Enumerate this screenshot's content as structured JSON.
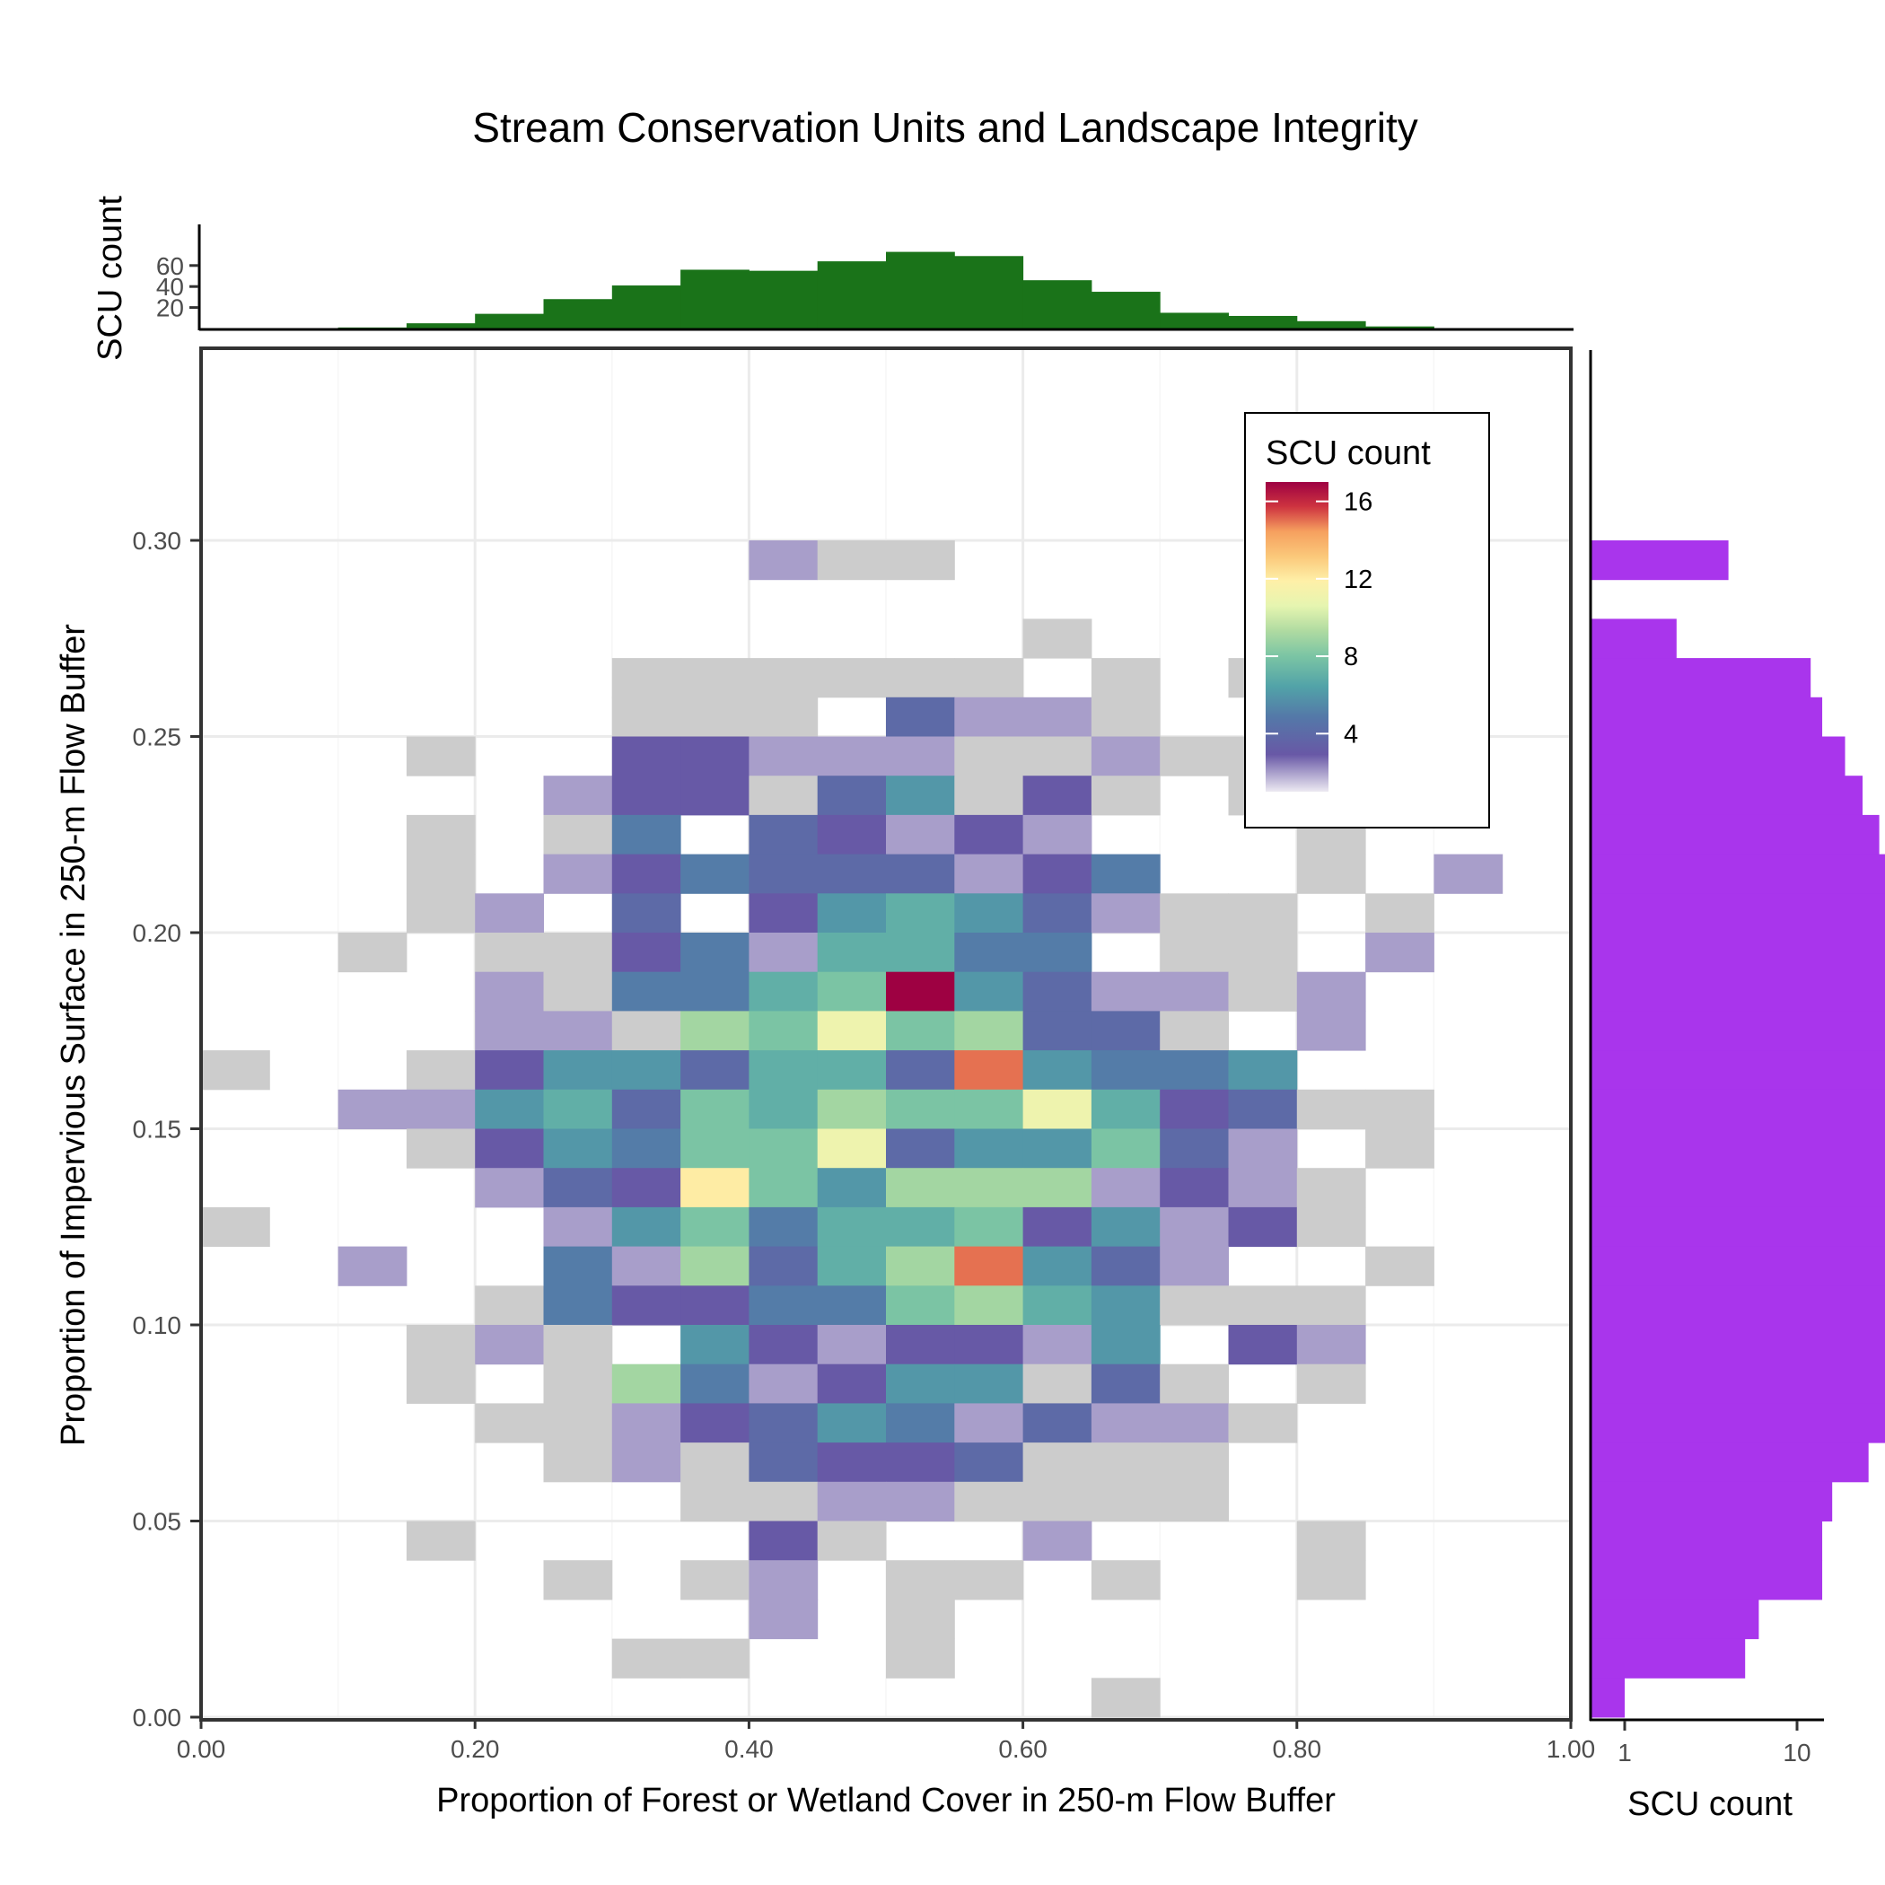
{
  "chart_data": {
    "type": "heatmap",
    "title": "Stream Conservation Units and Landscape Integrity",
    "xlabel": "Proportion of Forest or Wetland Cover in 250-m Flow Buffer",
    "ylabel": "Proportion of Impervious Surface in 250-m Flow Buffer",
    "xlim": [
      0,
      1
    ],
    "ylim": [
      0,
      0.35
    ],
    "x_ticks": [
      "0.00",
      "0.20",
      "0.40",
      "0.60",
      "0.80",
      "1.00"
    ],
    "y_ticks": [
      "0.00",
      "0.05",
      "0.10",
      "0.15",
      "0.20",
      "0.25",
      "0.30"
    ],
    "bin_width_x": 0.05,
    "bin_height_y": 0.01,
    "grid": true,
    "colorscale": "Spectral (reversed)",
    "legend": {
      "title": "SCU count",
      "ticks": [
        "16",
        "12",
        "8",
        "4"
      ],
      "range": [
        1,
        17
      ],
      "position": "top-right"
    },
    "cells": [
      [
        0.4,
        0.29,
        2
      ],
      [
        0.45,
        0.29,
        1
      ],
      [
        0.5,
        0.29,
        1
      ],
      [
        0.6,
        0.27,
        1
      ],
      [
        0.3,
        0.26,
        1
      ],
      [
        0.35,
        0.26,
        1
      ],
      [
        0.4,
        0.26,
        1
      ],
      [
        0.45,
        0.26,
        1
      ],
      [
        0.5,
        0.26,
        1
      ],
      [
        0.55,
        0.26,
        1
      ],
      [
        0.65,
        0.26,
        1
      ],
      [
        0.75,
        0.26,
        1
      ],
      [
        0.3,
        0.25,
        1
      ],
      [
        0.35,
        0.25,
        1
      ],
      [
        0.4,
        0.25,
        1
      ],
      [
        0.5,
        0.25,
        4
      ],
      [
        0.55,
        0.25,
        2
      ],
      [
        0.6,
        0.25,
        2
      ],
      [
        0.65,
        0.25,
        1
      ],
      [
        0.15,
        0.24,
        1
      ],
      [
        0.3,
        0.24,
        3
      ],
      [
        0.35,
        0.24,
        3
      ],
      [
        0.4,
        0.24,
        2
      ],
      [
        0.45,
        0.24,
        2
      ],
      [
        0.5,
        0.24,
        2
      ],
      [
        0.55,
        0.24,
        1
      ],
      [
        0.6,
        0.24,
        1
      ],
      [
        0.65,
        0.24,
        2
      ],
      [
        0.7,
        0.24,
        1
      ],
      [
        0.75,
        0.24,
        1
      ],
      [
        0.25,
        0.23,
        2
      ],
      [
        0.3,
        0.23,
        3
      ],
      [
        0.35,
        0.23,
        3
      ],
      [
        0.4,
        0.23,
        1
      ],
      [
        0.45,
        0.23,
        4
      ],
      [
        0.5,
        0.23,
        6
      ],
      [
        0.55,
        0.23,
        1
      ],
      [
        0.6,
        0.23,
        3
      ],
      [
        0.65,
        0.23,
        1
      ],
      [
        0.75,
        0.23,
        1
      ],
      [
        0.8,
        0.23,
        1
      ],
      [
        0.15,
        0.22,
        1
      ],
      [
        0.25,
        0.22,
        1
      ],
      [
        0.3,
        0.22,
        5
      ],
      [
        0.4,
        0.22,
        4
      ],
      [
        0.45,
        0.22,
        3
      ],
      [
        0.5,
        0.22,
        2
      ],
      [
        0.55,
        0.22,
        3
      ],
      [
        0.6,
        0.22,
        2
      ],
      [
        0.8,
        0.22,
        1
      ],
      [
        0.15,
        0.21,
        1
      ],
      [
        0.25,
        0.21,
        2
      ],
      [
        0.3,
        0.21,
        3
      ],
      [
        0.35,
        0.21,
        5
      ],
      [
        0.4,
        0.21,
        4
      ],
      [
        0.45,
        0.21,
        4
      ],
      [
        0.5,
        0.21,
        4
      ],
      [
        0.55,
        0.21,
        2
      ],
      [
        0.6,
        0.21,
        3
      ],
      [
        0.65,
        0.21,
        5
      ],
      [
        0.8,
        0.21,
        1
      ],
      [
        0.9,
        0.21,
        2
      ],
      [
        0.15,
        0.2,
        1
      ],
      [
        0.2,
        0.2,
        2
      ],
      [
        0.3,
        0.2,
        4
      ],
      [
        0.4,
        0.2,
        3
      ],
      [
        0.45,
        0.2,
        6
      ],
      [
        0.5,
        0.2,
        7
      ],
      [
        0.55,
        0.2,
        6
      ],
      [
        0.6,
        0.2,
        4
      ],
      [
        0.65,
        0.2,
        2
      ],
      [
        0.7,
        0.2,
        1
      ],
      [
        0.75,
        0.2,
        1
      ],
      [
        0.85,
        0.2,
        1
      ],
      [
        0.1,
        0.19,
        1
      ],
      [
        0.2,
        0.19,
        1
      ],
      [
        0.25,
        0.19,
        1
      ],
      [
        0.3,
        0.19,
        3
      ],
      [
        0.35,
        0.19,
        5
      ],
      [
        0.4,
        0.19,
        2
      ],
      [
        0.45,
        0.19,
        7
      ],
      [
        0.5,
        0.19,
        7
      ],
      [
        0.55,
        0.19,
        5
      ],
      [
        0.6,
        0.19,
        5
      ],
      [
        0.7,
        0.19,
        1
      ],
      [
        0.75,
        0.19,
        1
      ],
      [
        0.85,
        0.19,
        2
      ],
      [
        0.2,
        0.18,
        2
      ],
      [
        0.25,
        0.18,
        1
      ],
      [
        0.3,
        0.18,
        5
      ],
      [
        0.35,
        0.18,
        5
      ],
      [
        0.4,
        0.18,
        7
      ],
      [
        0.45,
        0.18,
        8
      ],
      [
        0.5,
        0.18,
        17
      ],
      [
        0.55,
        0.18,
        6
      ],
      [
        0.6,
        0.18,
        4
      ],
      [
        0.65,
        0.18,
        2
      ],
      [
        0.7,
        0.18,
        2
      ],
      [
        0.75,
        0.18,
        1
      ],
      [
        0.8,
        0.18,
        2
      ],
      [
        0.2,
        0.17,
        2
      ],
      [
        0.25,
        0.17,
        2
      ],
      [
        0.3,
        0.17,
        1
      ],
      [
        0.35,
        0.17,
        9
      ],
      [
        0.4,
        0.17,
        8
      ],
      [
        0.45,
        0.17,
        11
      ],
      [
        0.5,
        0.17,
        8
      ],
      [
        0.55,
        0.17,
        9
      ],
      [
        0.6,
        0.17,
        4
      ],
      [
        0.65,
        0.17,
        4
      ],
      [
        0.7,
        0.17,
        1
      ],
      [
        0.8,
        0.17,
        2
      ],
      [
        0.0,
        0.16,
        1
      ],
      [
        0.15,
        0.16,
        1
      ],
      [
        0.2,
        0.16,
        3
      ],
      [
        0.25,
        0.16,
        6
      ],
      [
        0.3,
        0.16,
        6
      ],
      [
        0.35,
        0.16,
        4
      ],
      [
        0.4,
        0.16,
        7
      ],
      [
        0.45,
        0.16,
        7
      ],
      [
        0.5,
        0.16,
        4
      ],
      [
        0.55,
        0.16,
        15
      ],
      [
        0.6,
        0.16,
        6
      ],
      [
        0.65,
        0.16,
        5
      ],
      [
        0.7,
        0.16,
        5
      ],
      [
        0.75,
        0.16,
        6
      ],
      [
        0.1,
        0.15,
        2
      ],
      [
        0.15,
        0.15,
        2
      ],
      [
        0.2,
        0.15,
        6
      ],
      [
        0.25,
        0.15,
        7
      ],
      [
        0.3,
        0.15,
        4
      ],
      [
        0.35,
        0.15,
        8
      ],
      [
        0.4,
        0.15,
        7
      ],
      [
        0.45,
        0.15,
        9
      ],
      [
        0.5,
        0.15,
        8
      ],
      [
        0.55,
        0.15,
        8
      ],
      [
        0.6,
        0.15,
        11
      ],
      [
        0.65,
        0.15,
        7
      ],
      [
        0.7,
        0.15,
        3
      ],
      [
        0.75,
        0.15,
        4
      ],
      [
        0.8,
        0.15,
        1
      ],
      [
        0.85,
        0.15,
        1
      ],
      [
        0.15,
        0.14,
        1
      ],
      [
        0.2,
        0.14,
        3
      ],
      [
        0.25,
        0.14,
        6
      ],
      [
        0.3,
        0.14,
        5
      ],
      [
        0.35,
        0.14,
        8
      ],
      [
        0.4,
        0.14,
        8
      ],
      [
        0.45,
        0.14,
        11
      ],
      [
        0.5,
        0.14,
        4
      ],
      [
        0.55,
        0.14,
        6
      ],
      [
        0.6,
        0.14,
        6
      ],
      [
        0.65,
        0.14,
        8
      ],
      [
        0.7,
        0.14,
        4
      ],
      [
        0.75,
        0.14,
        2
      ],
      [
        0.85,
        0.14,
        1
      ],
      [
        0.2,
        0.13,
        2
      ],
      [
        0.25,
        0.13,
        4
      ],
      [
        0.3,
        0.13,
        3
      ],
      [
        0.35,
        0.13,
        12
      ],
      [
        0.4,
        0.13,
        8
      ],
      [
        0.45,
        0.13,
        6
      ],
      [
        0.5,
        0.13,
        9
      ],
      [
        0.55,
        0.13,
        9
      ],
      [
        0.6,
        0.13,
        9
      ],
      [
        0.65,
        0.13,
        2
      ],
      [
        0.7,
        0.13,
        3
      ],
      [
        0.75,
        0.13,
        2
      ],
      [
        0.8,
        0.13,
        1
      ],
      [
        0.0,
        0.12,
        1
      ],
      [
        0.25,
        0.12,
        2
      ],
      [
        0.3,
        0.12,
        6
      ],
      [
        0.35,
        0.12,
        8
      ],
      [
        0.4,
        0.12,
        5
      ],
      [
        0.45,
        0.12,
        7
      ],
      [
        0.5,
        0.12,
        7
      ],
      [
        0.55,
        0.12,
        8
      ],
      [
        0.6,
        0.12,
        3
      ],
      [
        0.65,
        0.12,
        6
      ],
      [
        0.7,
        0.12,
        2
      ],
      [
        0.75,
        0.12,
        3
      ],
      [
        0.8,
        0.12,
        1
      ],
      [
        0.1,
        0.11,
        2
      ],
      [
        0.25,
        0.11,
        5
      ],
      [
        0.3,
        0.11,
        2
      ],
      [
        0.35,
        0.11,
        9
      ],
      [
        0.4,
        0.11,
        4
      ],
      [
        0.45,
        0.11,
        7
      ],
      [
        0.5,
        0.11,
        9
      ],
      [
        0.55,
        0.11,
        15
      ],
      [
        0.6,
        0.11,
        6
      ],
      [
        0.65,
        0.11,
        4
      ],
      [
        0.7,
        0.11,
        2
      ],
      [
        0.85,
        0.11,
        1
      ],
      [
        0.2,
        0.1,
        1
      ],
      [
        0.25,
        0.1,
        5
      ],
      [
        0.3,
        0.1,
        3
      ],
      [
        0.35,
        0.1,
        3
      ],
      [
        0.4,
        0.1,
        5
      ],
      [
        0.45,
        0.1,
        5
      ],
      [
        0.5,
        0.1,
        8
      ],
      [
        0.55,
        0.1,
        9
      ],
      [
        0.6,
        0.1,
        7
      ],
      [
        0.65,
        0.1,
        6
      ],
      [
        0.7,
        0.1,
        1
      ],
      [
        0.75,
        0.1,
        1
      ],
      [
        0.8,
        0.1,
        1
      ],
      [
        0.15,
        0.09,
        1
      ],
      [
        0.2,
        0.09,
        2
      ],
      [
        0.25,
        0.09,
        1
      ],
      [
        0.35,
        0.09,
        6
      ],
      [
        0.4,
        0.09,
        3
      ],
      [
        0.45,
        0.09,
        2
      ],
      [
        0.5,
        0.09,
        3
      ],
      [
        0.55,
        0.09,
        3
      ],
      [
        0.6,
        0.09,
        2
      ],
      [
        0.65,
        0.09,
        6
      ],
      [
        0.75,
        0.09,
        3
      ],
      [
        0.8,
        0.09,
        2
      ],
      [
        0.15,
        0.08,
        1
      ],
      [
        0.25,
        0.08,
        1
      ],
      [
        0.3,
        0.08,
        9
      ],
      [
        0.35,
        0.08,
        5
      ],
      [
        0.4,
        0.08,
        2
      ],
      [
        0.45,
        0.08,
        3
      ],
      [
        0.5,
        0.08,
        6
      ],
      [
        0.55,
        0.08,
        6
      ],
      [
        0.6,
        0.08,
        1
      ],
      [
        0.65,
        0.08,
        4
      ],
      [
        0.7,
        0.08,
        1
      ],
      [
        0.8,
        0.08,
        1
      ],
      [
        0.2,
        0.07,
        1
      ],
      [
        0.25,
        0.07,
        1
      ],
      [
        0.3,
        0.07,
        2
      ],
      [
        0.35,
        0.07,
        3
      ],
      [
        0.4,
        0.07,
        4
      ],
      [
        0.45,
        0.07,
        6
      ],
      [
        0.5,
        0.07,
        5
      ],
      [
        0.55,
        0.07,
        2
      ],
      [
        0.6,
        0.07,
        4
      ],
      [
        0.65,
        0.07,
        2
      ],
      [
        0.7,
        0.07,
        2
      ],
      [
        0.75,
        0.07,
        1
      ],
      [
        0.25,
        0.06,
        1
      ],
      [
        0.3,
        0.06,
        2
      ],
      [
        0.35,
        0.06,
        1
      ],
      [
        0.4,
        0.06,
        4
      ],
      [
        0.45,
        0.06,
        3
      ],
      [
        0.5,
        0.06,
        3
      ],
      [
        0.55,
        0.06,
        4
      ],
      [
        0.6,
        0.06,
        1
      ],
      [
        0.65,
        0.06,
        1
      ],
      [
        0.7,
        0.06,
        1
      ],
      [
        0.35,
        0.05,
        1
      ],
      [
        0.4,
        0.05,
        1
      ],
      [
        0.45,
        0.05,
        2
      ],
      [
        0.5,
        0.05,
        2
      ],
      [
        0.55,
        0.05,
        1
      ],
      [
        0.6,
        0.05,
        1
      ],
      [
        0.65,
        0.05,
        1
      ],
      [
        0.7,
        0.05,
        1
      ],
      [
        0.15,
        0.04,
        1
      ],
      [
        0.4,
        0.04,
        3
      ],
      [
        0.45,
        0.04,
        1
      ],
      [
        0.6,
        0.04,
        2
      ],
      [
        0.8,
        0.04,
        1
      ],
      [
        0.25,
        0.03,
        1
      ],
      [
        0.35,
        0.03,
        1
      ],
      [
        0.4,
        0.03,
        2
      ],
      [
        0.5,
        0.03,
        1
      ],
      [
        0.55,
        0.03,
        1
      ],
      [
        0.65,
        0.03,
        1
      ],
      [
        0.8,
        0.03,
        1
      ],
      [
        0.4,
        0.02,
        2
      ],
      [
        0.5,
        0.02,
        1
      ],
      [
        0.3,
        0.01,
        1
      ],
      [
        0.35,
        0.01,
        1
      ],
      [
        0.5,
        0.01,
        1
      ],
      [
        0.65,
        0.0,
        1
      ]
    ],
    "top_histogram": {
      "ylabel": "SCU count",
      "y_ticks": [
        "20",
        "40",
        "60"
      ],
      "color": "#1a7319",
      "x": [
        0.1,
        0.15,
        0.2,
        0.25,
        0.3,
        0.35,
        0.4,
        0.45,
        0.5,
        0.55,
        0.6,
        0.65,
        0.7,
        0.75,
        0.8,
        0.85
      ],
      "counts": [
        1,
        5,
        14,
        28,
        41,
        56,
        55,
        64,
        73,
        69,
        46,
        35,
        15,
        12,
        7,
        2
      ]
    },
    "right_histogram": {
      "xlabel": "SCU count",
      "x_ticks": [
        "1",
        "10"
      ],
      "scale": "log",
      "color": "#a935ec",
      "y": [
        0.29,
        0.27,
        0.26,
        0.25,
        0.24,
        0.23,
        0.22,
        0.21,
        0.2,
        0.19,
        0.18,
        0.17,
        0.16,
        0.15,
        0.14,
        0.13,
        0.12,
        0.11,
        0.1,
        0.09,
        0.08,
        0.07,
        0.06,
        0.05,
        0.04,
        0.03,
        0.02,
        0.01,
        0.0
      ],
      "counts": [
        4,
        2,
        12,
        14,
        19,
        24,
        30,
        33,
        37,
        43,
        48,
        46,
        55,
        62,
        55,
        54,
        50,
        53,
        46,
        34,
        38,
        33,
        26,
        16,
        14,
        14,
        6,
        5,
        1
      ]
    }
  }
}
